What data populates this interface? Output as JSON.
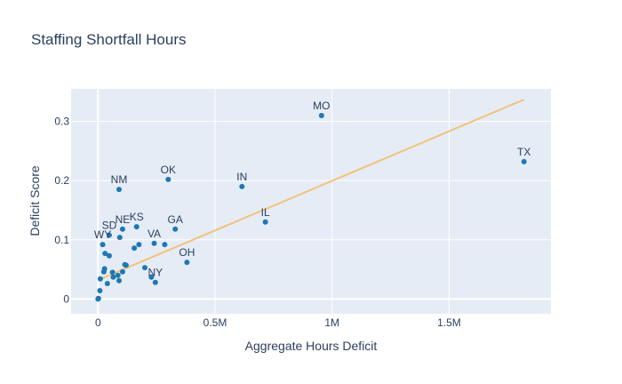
{
  "chart_data": {
    "type": "scatter",
    "title": "Staffing Shortfall Hours",
    "xlabel": "Aggregate Hours Deficit",
    "ylabel": "Deficit Score",
    "xlim": [
      -115000,
      1935000
    ],
    "ylim": [
      -0.025,
      0.355
    ],
    "x_ticks": [
      0,
      500000,
      1000000,
      1500000
    ],
    "x_tick_labels": [
      "0",
      "0.5M",
      "1M",
      "1.5M"
    ],
    "y_ticks": [
      0,
      0.1,
      0.2,
      0.3
    ],
    "y_tick_labels": [
      "0",
      "0.1",
      "0.2",
      "0.3"
    ],
    "grid": true,
    "colors": {
      "plot_bg": "#e5ecf6",
      "grid": "#ffffff",
      "point": "#1f77b4",
      "trendline": "#f2c27a",
      "text": "#2a3f5f"
    },
    "points": [
      {
        "x": 955000,
        "y": 0.31,
        "label": "MO"
      },
      {
        "x": 1820000,
        "y": 0.232,
        "label": "TX"
      },
      {
        "x": 300000,
        "y": 0.202,
        "label": "OK"
      },
      {
        "x": 615000,
        "y": 0.19,
        "label": "IN"
      },
      {
        "x": 90000,
        "y": 0.185,
        "label": "NM"
      },
      {
        "x": 715000,
        "y": 0.13,
        "label": "IL"
      },
      {
        "x": 165000,
        "y": 0.122,
        "label": "KS"
      },
      {
        "x": 330000,
        "y": 0.118,
        "label": "GA"
      },
      {
        "x": 105000,
        "y": 0.118,
        "label": "NE"
      },
      {
        "x": 48000,
        "y": 0.108,
        "label": "SD"
      },
      {
        "x": 240000,
        "y": 0.094,
        "label": "VA"
      },
      {
        "x": 20000,
        "y": 0.092,
        "label": "WY"
      },
      {
        "x": 380000,
        "y": 0.062,
        "label": "OH"
      },
      {
        "x": 245000,
        "y": 0.028,
        "label": "NY"
      },
      {
        "x": 93000,
        "y": 0.104,
        "label": ""
      },
      {
        "x": 175000,
        "y": 0.092,
        "label": ""
      },
      {
        "x": 285000,
        "y": 0.092,
        "label": ""
      },
      {
        "x": 155000,
        "y": 0.086,
        "label": ""
      },
      {
        "x": 30000,
        "y": 0.077,
        "label": ""
      },
      {
        "x": 48000,
        "y": 0.073,
        "label": ""
      },
      {
        "x": 115000,
        "y": 0.058,
        "label": ""
      },
      {
        "x": 120000,
        "y": 0.057,
        "label": ""
      },
      {
        "x": 200000,
        "y": 0.053,
        "label": ""
      },
      {
        "x": 28000,
        "y": 0.051,
        "label": ""
      },
      {
        "x": 25000,
        "y": 0.046,
        "label": ""
      },
      {
        "x": 62000,
        "y": 0.045,
        "label": ""
      },
      {
        "x": 105000,
        "y": 0.046,
        "label": ""
      },
      {
        "x": 85000,
        "y": 0.04,
        "label": ""
      },
      {
        "x": 65000,
        "y": 0.037,
        "label": ""
      },
      {
        "x": 228000,
        "y": 0.037,
        "label": ""
      },
      {
        "x": 10000,
        "y": 0.034,
        "label": ""
      },
      {
        "x": 90000,
        "y": 0.031,
        "label": ""
      },
      {
        "x": 40000,
        "y": 0.026,
        "label": ""
      },
      {
        "x": 8000,
        "y": 0.014,
        "label": ""
      },
      {
        "x": 2000,
        "y": 0.001,
        "label": ""
      },
      {
        "x": 0,
        "y": 0.0,
        "label": ""
      }
    ],
    "trendline": {
      "x": [
        0,
        1820000
      ],
      "y": [
        0.032,
        0.337
      ]
    }
  }
}
